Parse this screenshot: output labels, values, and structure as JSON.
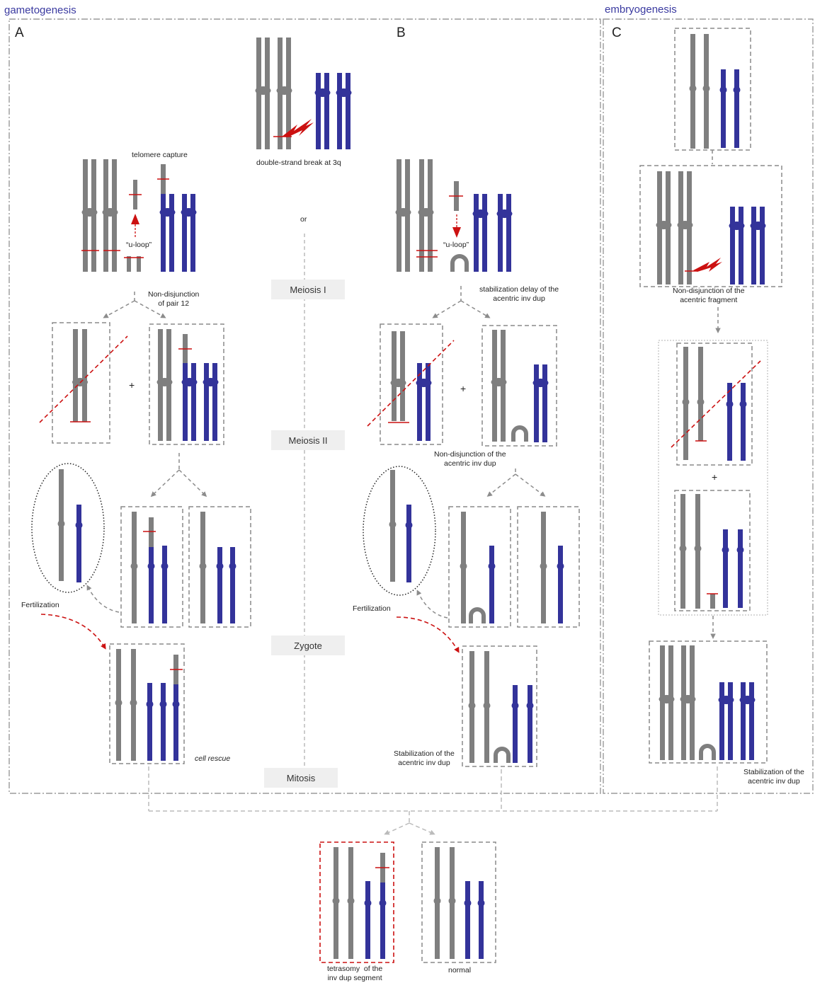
{
  "headers": {
    "gametogenesis": "gametogenesis",
    "embryogenesis": "embryogenesis"
  },
  "panels": {
    "a": "A",
    "b": "B",
    "c": "C"
  },
  "stages": {
    "meiosis1": "Meiosis I",
    "meiosis2": "Meiosis II",
    "zygote": "Zygote",
    "mitosis": "Mitosis"
  },
  "labels": {
    "dsb": "double-strand break at 3q",
    "or": "or",
    "telomere_capture": "telomere capture",
    "u_loop_a": "“u-loop”",
    "u_loop_b": "“u-loop”",
    "nondisj_12": "Non-disjunction\nof pair 12",
    "stab_delay": "stabilization delay of the\nacentric inv dup",
    "plus_a": "+",
    "plus_b": "+",
    "plus_c": "+",
    "nondisj_inv_dup": "Non-disjunction of the\nacentric inv dup",
    "fert_a": "Fertilization",
    "fert_b": "Fertilization",
    "cell_rescue": "cell rescue",
    "stab_b": "Stabilization of the\nacentric inv dup",
    "nondisj_frag_c": "Non-disjunction of the\nacentric fragment",
    "stab_c": "Stabilization of the\nacentric inv dup",
    "tetrasomy": "tetrasomy  of the\ninv dup segment",
    "normal": "normal"
  },
  "colors": {
    "grey_chromosome": "#7f7f7f",
    "blue_chromosome": "#33339a",
    "break_red": "#cc1111",
    "box_dash": "#8a8a8a",
    "arrow": "#8c8c8c"
  }
}
